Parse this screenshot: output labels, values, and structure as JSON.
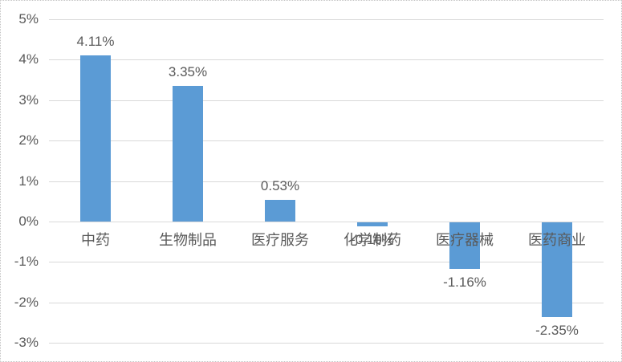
{
  "chart_data": {
    "type": "bar",
    "title": "",
    "xlabel": "",
    "ylabel": "",
    "categories": [
      "中药",
      "生物制品",
      "医疗服务",
      "化学制药",
      "医疗器械",
      "医药商业"
    ],
    "values": [
      4.11,
      3.35,
      0.53,
      -0.1,
      -1.16,
      -2.35
    ],
    "data_labels": [
      "4.11%",
      "3.35%",
      "0.53%",
      "-0.10%",
      "-1.16%",
      "-2.35%"
    ],
    "ylim": [
      -3,
      5
    ],
    "ytick_step": 1,
    "ytick_values": [
      5,
      4,
      3,
      2,
      1,
      0,
      -1,
      -2,
      -3
    ],
    "ytick_labels": [
      "5%",
      "4%",
      "3%",
      "2%",
      "1%",
      "0%",
      "-1%",
      "-2%",
      "-3%"
    ],
    "grid": true,
    "legend": false,
    "bar_color": "#5B9BD5",
    "gridline_color": "#D9D9D9",
    "axis_line_color": "#D9D9D9",
    "text_color": "#595959",
    "data_label_color": "#595959",
    "background_color": "#FFFFFF",
    "border_style": "dotted light gray"
  }
}
